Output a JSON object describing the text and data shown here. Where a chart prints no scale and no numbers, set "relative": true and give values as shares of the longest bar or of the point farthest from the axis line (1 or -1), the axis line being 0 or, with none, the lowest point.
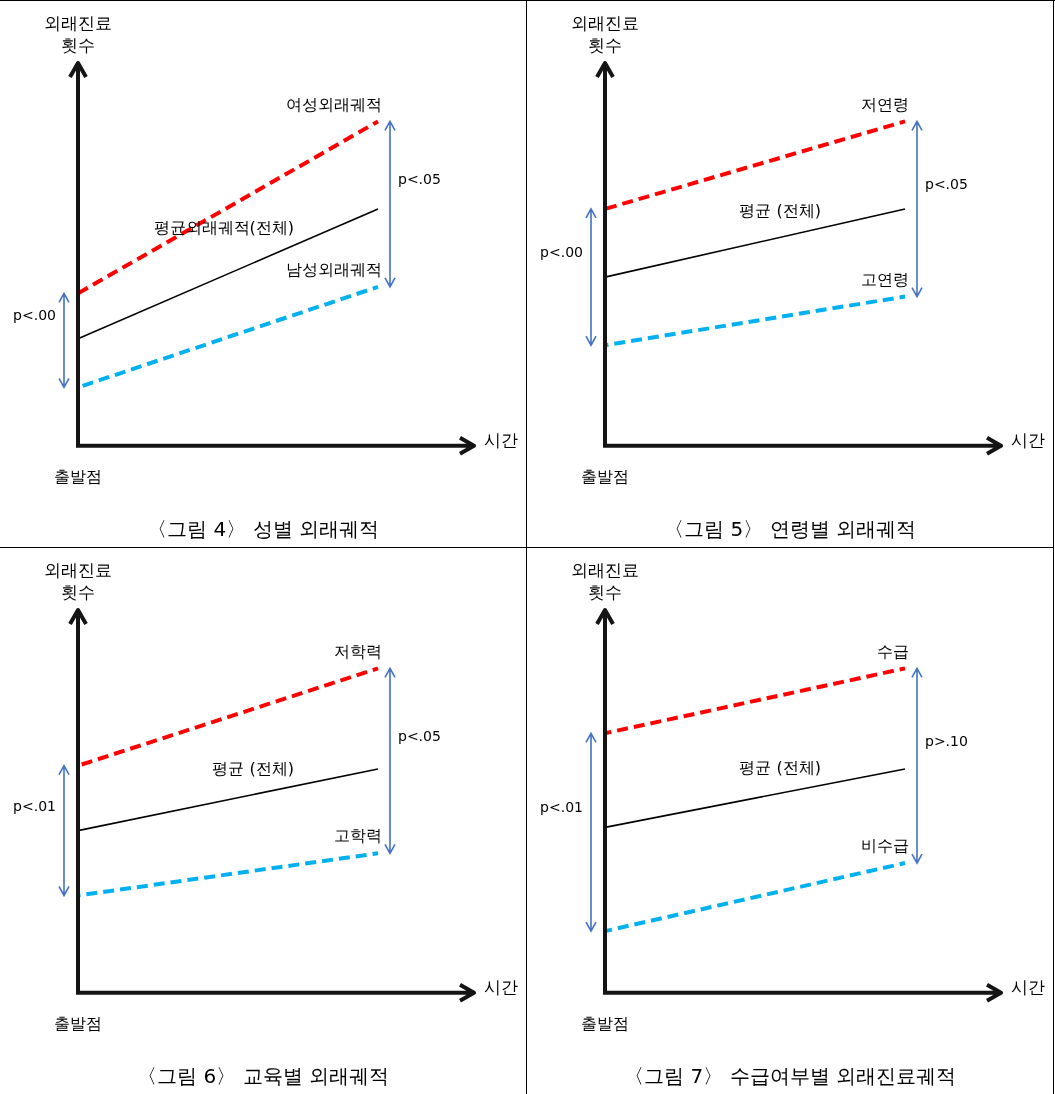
{
  "chart_data": [
    {
      "type": "line",
      "title": "〈그림 4〉 성별 외래궤적",
      "xlabel": "시간",
      "ylabel": "외래진료\n횟수",
      "relative": true,
      "categories": [
        null,
        null
      ],
      "annotations": [
        "p<.05",
        "p<.00",
        "출발점"
      ],
      "series": [
        {
          "name": "여성외래궤적",
          "color": "#ff0000",
          "line_style": "dashed",
          "values": [
            0.47,
            1
          ]
        },
        {
          "name": "평균외래궤적(전체)",
          "color": "#000000",
          "line_style": "solid",
          "values": [
            0.33,
            0.73
          ]
        },
        {
          "name": "남성외래궤적",
          "color": "#00b0f0",
          "line_style": "dashed",
          "values": [
            0.18,
            0.49
          ]
        }
      ]
    },
    {
      "type": "line",
      "title": "〈그림 5〉 연령별 외래궤적",
      "xlabel": "시간",
      "ylabel": "외래진료\n횟수",
      "relative": true,
      "categories": [
        null,
        null
      ],
      "annotations": [
        "p<.05",
        "p<.00",
        "출발점"
      ],
      "series": [
        {
          "name": "저연령",
          "color": "#ff0000",
          "line_style": "dashed",
          "values": [
            0.73,
            1
          ]
        },
        {
          "name": "평균 (전체)",
          "color": "#000000",
          "line_style": "solid",
          "values": [
            0.52,
            0.73
          ]
        },
        {
          "name": "고연령",
          "color": "#00b0f0",
          "line_style": "dashed",
          "values": [
            0.31,
            0.46
          ]
        }
      ]
    },
    {
      "type": "line",
      "title": "〈그림 6〉 교육별 외래궤적",
      "xlabel": "시간",
      "ylabel": "외래진료\n횟수",
      "relative": true,
      "categories": [
        null,
        null
      ],
      "annotations": [
        "p<.05",
        "p<.01",
        "출발점"
      ],
      "series": [
        {
          "name": "저학력",
          "color": "#ff0000",
          "line_style": "dashed",
          "values": [
            0.7,
            1
          ]
        },
        {
          "name": "평균 (전체)",
          "color": "#000000",
          "line_style": "solid",
          "values": [
            0.5,
            0.69
          ]
        },
        {
          "name": "고학력",
          "color": "#00b0f0",
          "line_style": "dashed",
          "values": [
            0.3,
            0.43
          ]
        }
      ]
    },
    {
      "type": "line",
      "title": "〈그림 7〉 수급여부별 외래진료궤적",
      "xlabel": "시간",
      "ylabel": "외래진료\n횟수",
      "relative": true,
      "categories": [
        null,
        null
      ],
      "annotations": [
        "p>.10",
        "p<.01",
        "출발점"
      ],
      "series": [
        {
          "name": "수급",
          "color": "#ff0000",
          "line_style": "dashed",
          "values": [
            0.8,
            1
          ]
        },
        {
          "name": "평균 (전체)",
          "color": "#000000",
          "line_style": "solid",
          "values": [
            0.51,
            0.69
          ]
        },
        {
          "name": "비수급",
          "color": "#00b0f0",
          "line_style": "dashed",
          "values": [
            0.19,
            0.4
          ]
        }
      ]
    }
  ]
}
